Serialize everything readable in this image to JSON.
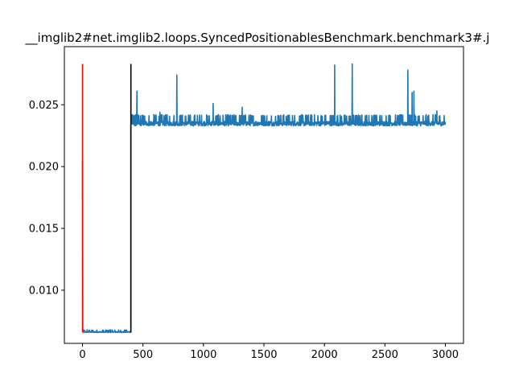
{
  "chart_data": {
    "type": "line",
    "title": "__imglib2#net.imglib2.loops.SyncedPositionablesBenchmark.benchmark3#.j",
    "xlabel": "",
    "ylabel": "",
    "xlim": [
      -150,
      3150
    ],
    "ylim": [
      0.0057,
      0.0297
    ],
    "xticks": [
      0,
      500,
      1000,
      1500,
      2000,
      2500,
      3000
    ],
    "yticks": [
      0.01,
      0.015,
      0.02,
      0.025
    ],
    "xtick_labels": [
      "0",
      "500",
      "1000",
      "1500",
      "2000",
      "2500",
      "3000"
    ],
    "ytick_labels": [
      "0.010",
      "0.015",
      "0.020",
      "0.025"
    ],
    "grid": false,
    "series": [
      {
        "color": "#1f77b4",
        "baseline_segments": [
          {
            "x_start": 0,
            "x_end": 400,
            "level": 0.0066,
            "noise": 8e-05
          },
          {
            "x_start": 400,
            "x_end": 3000,
            "level": 0.0234,
            "noise": 0.00035
          }
        ],
        "spikes": [
          {
            "x": 0,
            "y": 0.0205
          },
          {
            "x": 40,
            "y": 0.0068
          },
          {
            "x": 230,
            "y": 0.0068
          },
          {
            "x": 410,
            "y": 0.0242
          },
          {
            "x": 450,
            "y": 0.0261
          },
          {
            "x": 640,
            "y": 0.0244
          },
          {
            "x": 780,
            "y": 0.0274
          },
          {
            "x": 1080,
            "y": 0.0251
          },
          {
            "x": 1320,
            "y": 0.0248
          },
          {
            "x": 2085,
            "y": 0.0282
          },
          {
            "x": 2230,
            "y": 0.0283
          },
          {
            "x": 2690,
            "y": 0.0278
          },
          {
            "x": 2725,
            "y": 0.026
          },
          {
            "x": 2740,
            "y": 0.0261
          },
          {
            "x": 2930,
            "y": 0.0245
          }
        ]
      }
    ],
    "markers": [
      {
        "color": "#ff0000",
        "x": 0,
        "y_top": 0.0283,
        "y_bottom": 0.0066
      },
      {
        "color": "#000000",
        "x": 400,
        "y_top": 0.0283,
        "y_bottom": 0.0066
      }
    ]
  }
}
